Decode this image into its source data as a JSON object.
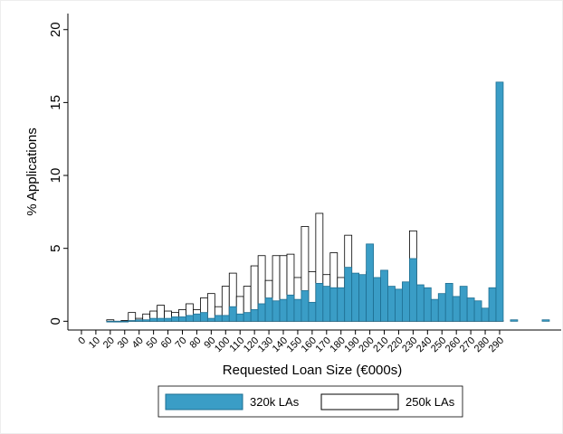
{
  "chart_data": {
    "type": "bar",
    "x_label": "Requested Loan Size (€000s)",
    "y_label": "% Applications",
    "bin_width": 5,
    "x": [
      20,
      25,
      30,
      35,
      40,
      45,
      50,
      55,
      60,
      65,
      70,
      75,
      80,
      85,
      90,
      95,
      100,
      105,
      110,
      115,
      120,
      125,
      130,
      135,
      140,
      145,
      150,
      155,
      160,
      165,
      170,
      175,
      180,
      185,
      190,
      195,
      200,
      205,
      210,
      215,
      220,
      225,
      230,
      235,
      240,
      245,
      250,
      255,
      260,
      265,
      270,
      275,
      280,
      285,
      290,
      300,
      322
    ],
    "series": [
      {
        "name": "250k LAs",
        "color": "#ffffff",
        "edge": "#000000",
        "values": [
          0.1,
          0,
          0.05,
          0.6,
          0.2,
          0.5,
          0.7,
          1.1,
          0.7,
          0.6,
          0.8,
          1.2,
          0.8,
          1.6,
          1.9,
          1.0,
          2.4,
          3.3,
          1.7,
          2.4,
          3.8,
          4.5,
          2.8,
          4.5,
          4.5,
          4.6,
          3.0,
          6.5,
          3.4,
          7.4,
          3.2,
          4.7,
          3.0,
          5.9,
          1.6,
          1.8,
          3.4,
          1.0,
          1.2,
          0.9,
          0.9,
          0.9,
          6.2,
          0.1,
          0.05,
          0.05,
          0.05,
          0.05,
          0.05,
          0.05,
          0.05,
          0.05,
          0.05,
          0.05,
          0.05,
          null,
          null
        ]
      },
      {
        "name": "320k LAs",
        "color": "#3a9dc6",
        "edge": "#1f6f92",
        "values": [
          0,
          0,
          0,
          0.05,
          0.1,
          0.1,
          0.2,
          0.2,
          0.2,
          0.3,
          0.3,
          0.4,
          0.5,
          0.6,
          0.2,
          0.4,
          0.4,
          1.0,
          0.5,
          0.6,
          0.8,
          1.2,
          1.6,
          1.4,
          1.5,
          1.8,
          1.5,
          2.1,
          1.3,
          2.6,
          2.4,
          2.3,
          2.3,
          3.7,
          3.3,
          3.2,
          5.3,
          3.0,
          3.5,
          2.4,
          2.2,
          2.7,
          4.3,
          2.5,
          2.3,
          1.5,
          1.9,
          2.6,
          1.7,
          2.4,
          1.6,
          1.4,
          0.9,
          2.3,
          16.4,
          0.1,
          0.1
        ]
      }
    ],
    "xlim": [
      -9.4,
      332.7
    ],
    "ylim": [
      -0.6,
      21.1
    ],
    "xticks": [
      0,
      10,
      20,
      30,
      40,
      50,
      60,
      70,
      80,
      90,
      100,
      110,
      120,
      130,
      140,
      150,
      160,
      170,
      180,
      190,
      200,
      210,
      220,
      230,
      240,
      250,
      260,
      270,
      280,
      290
    ],
    "yticks": [
      0,
      5,
      10,
      15,
      20
    ],
    "grid": false,
    "legend": "bottom"
  }
}
